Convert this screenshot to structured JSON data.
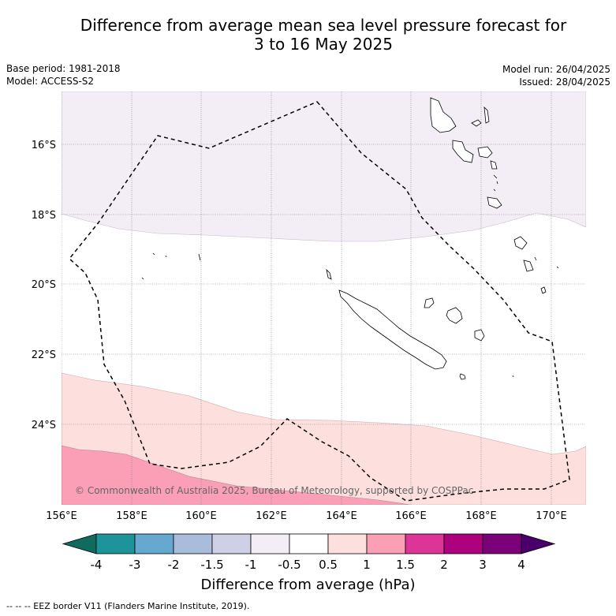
{
  "title_line1": "Difference from average mean sea level pressure forecast for",
  "title_line2": "3 to 16 May 2025",
  "base_period": "Base period: 1981-2018",
  "model": "Model: ACCESS-S2",
  "model_run": "Model run: 26/04/2025",
  "issued": "Issued: 28/04/2025",
  "copyright": "© Commonwealth of Australia 2025, Bureau of Meteorology, supported by COSPPac",
  "lat_labels": [
    "16°S",
    "18°S",
    "20°S",
    "22°S",
    "24°S"
  ],
  "lon_labels": [
    "156°E",
    "158°E",
    "160°E",
    "162°E",
    "164°E",
    "166°E",
    "168°E",
    "170°E"
  ],
  "colorbar": {
    "ticks": [
      "-4",
      "-3",
      "-2",
      "-1.5",
      "-1",
      "-0.5",
      "0.5",
      "1",
      "1.5",
      "2",
      "3",
      "4"
    ],
    "colors": [
      "#0f6b5e",
      "#1d9499",
      "#66a8d0",
      "#a9bcdc",
      "#cfd0e6",
      "#f3eef6",
      "#ffffff",
      "#fde0dd",
      "#fa9fb5",
      "#dd3497",
      "#ae017e",
      "#7a0177",
      "#49006a"
    ],
    "title": "Difference from average (hPa)"
  },
  "footer": "-- -- -- EEZ border V11 (Flanders Marine Institute, 2019)."
}
